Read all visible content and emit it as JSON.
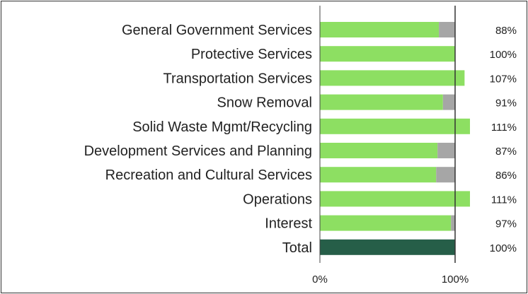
{
  "chart_data": {
    "type": "bar",
    "orientation": "horizontal",
    "categories": [
      "General Government Services",
      "Protective Services",
      "Transportation Services",
      "Snow Removal",
      "Solid Waste Mgmt/Recycling",
      "Development Services and Planning",
      "Recreation and Cultural Services",
      "Operations",
      "Interest",
      "Total"
    ],
    "values": [
      88,
      100,
      107,
      91,
      111,
      87,
      86,
      111,
      97,
      100
    ],
    "value_labels": [
      "88%",
      "100%",
      "107%",
      "91%",
      "111%",
      "87%",
      "86%",
      "111%",
      "97%",
      "100%"
    ],
    "reference_value": 100,
    "xlim": [
      0,
      111
    ],
    "x_ticks": [
      0,
      100
    ],
    "x_tick_labels": [
      "0%",
      "100%"
    ],
    "title": "",
    "xlabel": "",
    "ylabel": "",
    "colors": {
      "bar": "#8ddf62",
      "remainder": "#a6a6a6",
      "total": "#265e48",
      "reference_line": "#333333"
    }
  }
}
